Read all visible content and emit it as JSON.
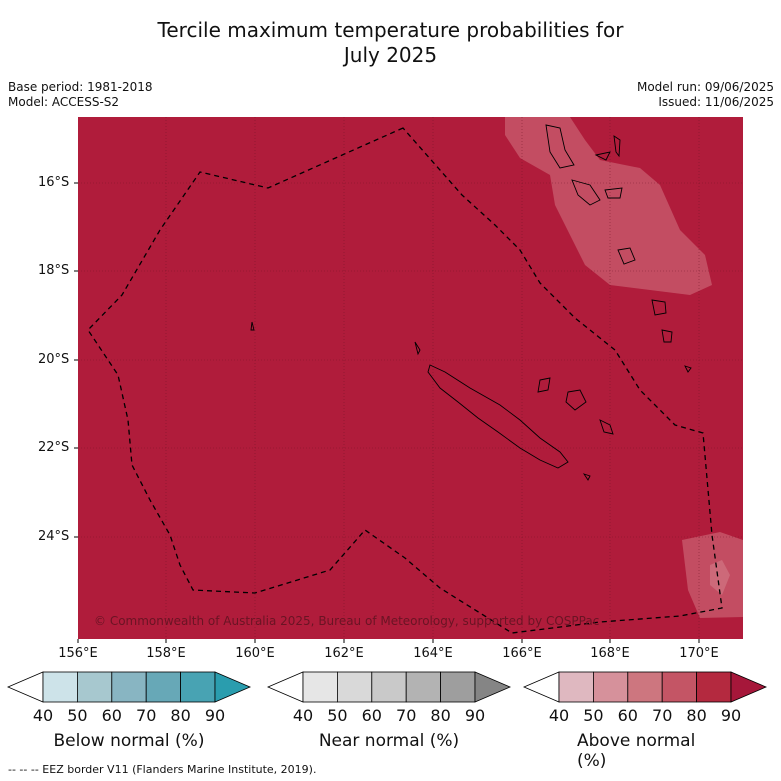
{
  "title_line1": "Tercile maximum temperature probabilities for",
  "title_line2": "July 2025",
  "meta_left": {
    "base_period": "Base period: 1981-2018",
    "model": "Model: ACCESS-S2"
  },
  "meta_right": {
    "model_run": "Model run: 09/06/2025",
    "issued": "Issued: 11/06/2025"
  },
  "map": {
    "lat_labels": [
      "16°S",
      "18°S",
      "20°S",
      "22°S",
      "24°S"
    ],
    "lon_labels": [
      "156°E",
      "158°E",
      "160°E",
      "162°E",
      "164°E",
      "166°E",
      "168°E",
      "170°E"
    ],
    "copyright": "© Commonwealth of Australia 2025, Bureau of Meteorology, supported by COSPPac",
    "background_color": "#b01c3b",
    "grid": true,
    "eez_line": "dashed"
  },
  "colorbars": [
    {
      "id": "below",
      "title": "Below normal (%)",
      "ticks": [
        "40",
        "50",
        "60",
        "70",
        "80",
        "90"
      ],
      "colors": [
        "#ffffff",
        "#cde3e9",
        "#a7c8cf",
        "#88b5c2",
        "#67a8b7",
        "#48a3b3",
        "#2a9dae"
      ]
    },
    {
      "id": "near",
      "title": "Near normal (%)",
      "ticks": [
        "40",
        "50",
        "60",
        "70",
        "80",
        "90"
      ],
      "colors": [
        "#ffffff",
        "#e6e6e6",
        "#d9d9d9",
        "#c9c9c9",
        "#b3b3b3",
        "#9e9e9e",
        "#858585"
      ]
    },
    {
      "id": "above",
      "title": "Above normal (%)",
      "ticks": [
        "40",
        "50",
        "60",
        "70",
        "80",
        "90"
      ],
      "colors": [
        "#ffffff",
        "#dfb8c0",
        "#d6919b",
        "#cd767f",
        "#c45565",
        "#b4293f",
        "#a6173a"
      ]
    }
  ],
  "footer": "-- -- -- EEZ border V11 (Flanders Marine Institute, 2019)."
}
